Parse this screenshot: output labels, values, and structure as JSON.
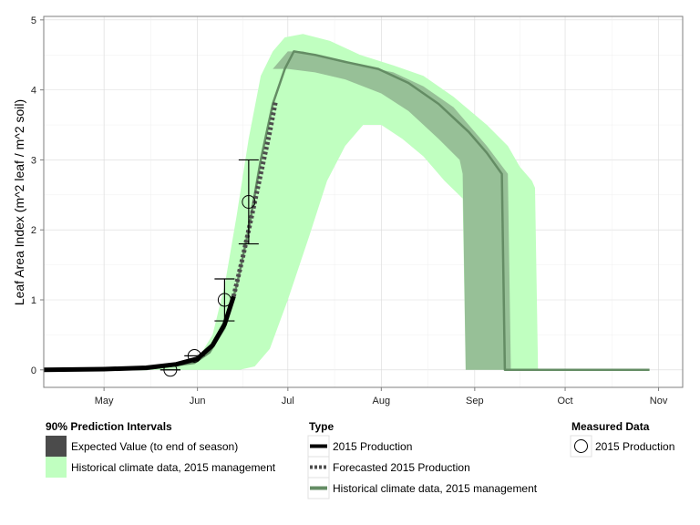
{
  "chart_data": {
    "type": "line",
    "ylabel": "Leaf Area Index (m^2 leaf / m^2 soil)",
    "xlabel": "",
    "xlim": [
      "2015-04-11",
      "2015-11-09"
    ],
    "ylim": [
      -0.25,
      5.05
    ],
    "x_ticks": [
      {
        "date": "2015-05-01",
        "label": "May"
      },
      {
        "date": "2015-06-01",
        "label": "Jun"
      },
      {
        "date": "2015-07-01",
        "label": "Jul"
      },
      {
        "date": "2015-08-01",
        "label": "Aug"
      },
      {
        "date": "2015-09-01",
        "label": "Sep"
      },
      {
        "date": "2015-10-01",
        "label": "Oct"
      },
      {
        "date": "2015-11-01",
        "label": "Nov"
      }
    ],
    "y_ticks": [
      0,
      1,
      2,
      3,
      4,
      5
    ],
    "grid": true,
    "colors": {
      "historical_band": "#c0ffc0",
      "expected_band": "#4b4b4b",
      "production_line": "#000000",
      "forecast_line": "#4d4d4d",
      "historical_line": "#648c64"
    },
    "bands": [
      {
        "name": "Historical climate data, 2015 management",
        "upper": [
          [
            "2015-04-11",
            0.0
          ],
          [
            "2015-05-25",
            0.05
          ],
          [
            "2015-06-01",
            0.15
          ],
          [
            "2015-06-06",
            0.5
          ],
          [
            "2015-06-10",
            1.2
          ],
          [
            "2015-06-14",
            2.2
          ],
          [
            "2015-06-18",
            3.3
          ],
          [
            "2015-06-22",
            4.2
          ],
          [
            "2015-06-26",
            4.55
          ],
          [
            "2015-06-30",
            4.75
          ],
          [
            "2015-07-06",
            4.8
          ],
          [
            "2015-07-15",
            4.7
          ],
          [
            "2015-07-25",
            4.5
          ],
          [
            "2015-08-05",
            4.35
          ],
          [
            "2015-08-15",
            4.2
          ],
          [
            "2015-08-25",
            3.9
          ],
          [
            "2015-09-05",
            3.5
          ],
          [
            "2015-09-12",
            3.2
          ],
          [
            "2015-09-16",
            2.9
          ],
          [
            "2015-09-19",
            2.75
          ],
          [
            "2015-09-20",
            2.7
          ],
          [
            "2015-09-21",
            2.6
          ],
          [
            "2015-09-22",
            0.0
          ]
        ],
        "lower": [
          [
            "2015-04-11",
            0.0
          ],
          [
            "2015-06-15",
            0.0
          ],
          [
            "2015-06-20",
            0.05
          ],
          [
            "2015-06-25",
            0.3
          ],
          [
            "2015-07-01",
            1.0
          ],
          [
            "2015-07-08",
            1.9
          ],
          [
            "2015-07-14",
            2.7
          ],
          [
            "2015-07-20",
            3.2
          ],
          [
            "2015-07-26",
            3.5
          ],
          [
            "2015-08-01",
            3.5
          ],
          [
            "2015-08-08",
            3.3
          ],
          [
            "2015-08-15",
            3.05
          ],
          [
            "2015-08-22",
            2.7
          ],
          [
            "2015-08-28",
            2.45
          ],
          [
            "2015-08-29",
            0.0
          ]
        ]
      },
      {
        "name": "Expected Value (to end of season)",
        "upper": [
          [
            "2015-06-26",
            4.3
          ],
          [
            "2015-07-01",
            4.55
          ],
          [
            "2015-07-06",
            4.55
          ],
          [
            "2015-07-15",
            4.45
          ],
          [
            "2015-07-25",
            4.35
          ],
          [
            "2015-08-05",
            4.25
          ],
          [
            "2015-08-15",
            4.05
          ],
          [
            "2015-08-25",
            3.75
          ],
          [
            "2015-09-05",
            3.2
          ],
          [
            "2015-09-12",
            2.8
          ],
          [
            "2015-09-13",
            0.0
          ]
        ],
        "lower": [
          [
            "2015-06-26",
            4.3
          ],
          [
            "2015-07-01",
            4.3
          ],
          [
            "2015-07-10",
            4.25
          ],
          [
            "2015-07-20",
            4.15
          ],
          [
            "2015-08-01",
            3.95
          ],
          [
            "2015-08-10",
            3.7
          ],
          [
            "2015-08-20",
            3.3
          ],
          [
            "2015-08-27",
            3.0
          ],
          [
            "2015-08-28",
            2.8
          ],
          [
            "2015-08-29",
            0.0
          ]
        ]
      }
    ],
    "series": [
      {
        "name": "Historical climate data, 2015 management",
        "style": "solid",
        "points": [
          [
            "2015-04-11",
            0.0
          ],
          [
            "2015-05-15",
            0.01
          ],
          [
            "2015-05-31",
            0.1
          ],
          [
            "2015-06-05",
            0.25
          ],
          [
            "2015-06-10",
            0.6
          ],
          [
            "2015-06-14",
            1.2
          ],
          [
            "2015-06-18",
            2.0
          ],
          [
            "2015-06-22",
            3.0
          ],
          [
            "2015-06-26",
            3.8
          ],
          [
            "2015-06-30",
            4.3
          ],
          [
            "2015-07-03",
            4.55
          ],
          [
            "2015-07-10",
            4.5
          ],
          [
            "2015-07-20",
            4.4
          ],
          [
            "2015-07-31",
            4.3
          ],
          [
            "2015-08-10",
            4.1
          ],
          [
            "2015-08-20",
            3.8
          ],
          [
            "2015-08-30",
            3.4
          ],
          [
            "2015-09-05",
            3.1
          ],
          [
            "2015-09-10",
            2.8
          ],
          [
            "2015-09-11",
            0.0
          ],
          [
            "2015-10-29",
            0.0
          ]
        ]
      },
      {
        "name": "2015 Production",
        "style": "solid",
        "points": [
          [
            "2015-04-11",
            0.0
          ],
          [
            "2015-05-01",
            0.01
          ],
          [
            "2015-05-15",
            0.03
          ],
          [
            "2015-05-25",
            0.08
          ],
          [
            "2015-06-01",
            0.16
          ],
          [
            "2015-06-06",
            0.35
          ],
          [
            "2015-06-10",
            0.65
          ],
          [
            "2015-06-13",
            1.05
          ]
        ]
      },
      {
        "name": "Forecasted 2015 Production",
        "style": "dotted",
        "points": [
          [
            "2015-06-13",
            1.05
          ],
          [
            "2015-06-16",
            1.6
          ],
          [
            "2015-06-19",
            2.2
          ],
          [
            "2015-06-22",
            2.8
          ],
          [
            "2015-06-25",
            3.4
          ],
          [
            "2015-06-27",
            3.85
          ]
        ]
      }
    ],
    "measured": [
      {
        "date": "2015-05-23",
        "value": 0.0,
        "low": 0.0,
        "high": 0.0
      },
      {
        "date": "2015-05-31",
        "value": 0.2,
        "low": 0.2,
        "high": 0.2
      },
      {
        "date": "2015-06-10",
        "value": 1.0,
        "low": 0.7,
        "high": 1.3
      },
      {
        "date": "2015-06-18",
        "value": 2.4,
        "low": 1.8,
        "high": 3.0
      }
    ]
  },
  "legend": {
    "intervals_title": "90% Prediction Intervals",
    "intervals": [
      {
        "label": "Expected Value (to end of season)",
        "color": "#4b4b4b"
      },
      {
        "label": "Historical climate data, 2015 management",
        "color": "#c0ffc0"
      }
    ],
    "type_title": "Type",
    "types": [
      {
        "label": "2015 Production",
        "style": "solid",
        "color": "#000000"
      },
      {
        "label": "Forecasted 2015 Production",
        "style": "dotted",
        "color": "#4d4d4d"
      },
      {
        "label": "Historical climate data, 2015 management",
        "style": "solid",
        "color": "#648c64"
      }
    ],
    "measured_title": "Measured Data",
    "measured_items": [
      {
        "label": "2015 Production",
        "symbol": "open-circle"
      }
    ]
  }
}
